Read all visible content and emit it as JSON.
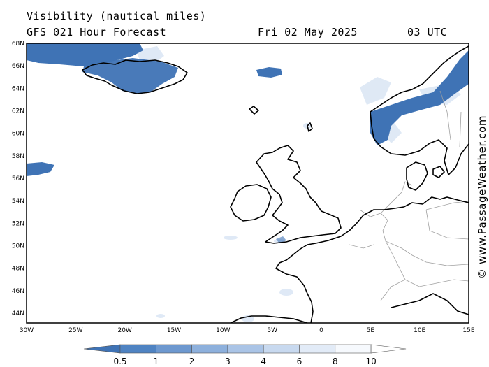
{
  "header": {
    "title": "Visibility (nautical miles)",
    "subtitle": "GFS 021 Hour Forecast",
    "date": "Fri 02 May 2025",
    "time": "03 UTC"
  },
  "map": {
    "lat_ticks": [
      "68N",
      "66N",
      "64N",
      "62N",
      "60N",
      "58N",
      "56N",
      "54N",
      "52N",
      "50N",
      "48N",
      "46N",
      "44N"
    ],
    "lon_ticks": [
      "30W",
      "25W",
      "20W",
      "15W",
      "10W",
      "5W",
      "0",
      "5E",
      "10E",
      "15E"
    ]
  },
  "credit": "© www.PassageWeather.com",
  "legend": {
    "labels": [
      "0.5",
      "1",
      "2",
      "3",
      "4",
      "6",
      "8",
      "10"
    ],
    "colors": [
      "#3f73b5",
      "#4f83c2",
      "#6d98cf",
      "#8db0dc",
      "#aac4e6",
      "#c8d9ef",
      "#e2ebf7",
      "#f6f9fd"
    ]
  },
  "colors": {
    "low_visibility": "#3f73b5",
    "haze": "#c4d7ee",
    "coast": "#000000",
    "border": "#a0a0a0"
  }
}
